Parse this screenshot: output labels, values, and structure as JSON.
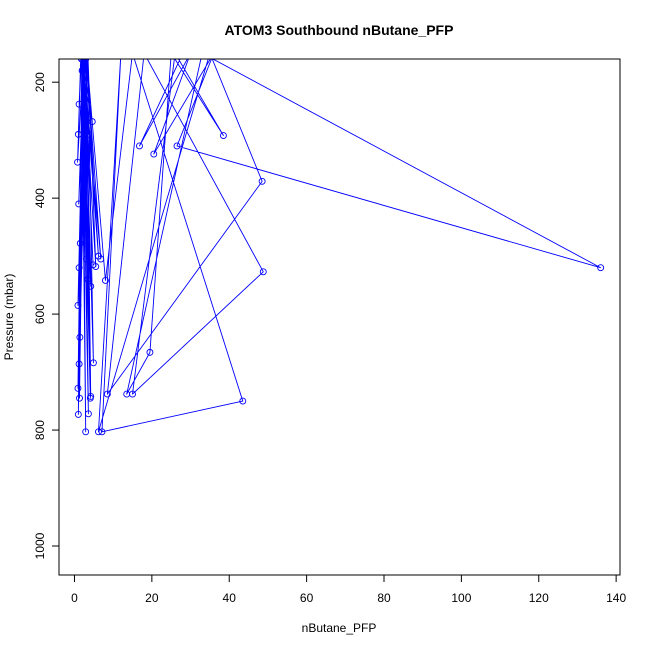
{
  "chart_data": {
    "type": "line",
    "title": "ATOM3 Southbound nButane_PFP",
    "xlabel": "nButane_PFP",
    "ylabel": "Pressure (mbar)",
    "xlim": [
      -4,
      141
    ],
    "ylim": [
      1050,
      160
    ],
    "y_reversed": true,
    "x_ticks": [
      "0",
      "20",
      "40",
      "60",
      "80",
      "100",
      "120",
      "140"
    ],
    "y_ticks": [
      "200",
      "400",
      "600",
      "800",
      "1000"
    ],
    "grid": false,
    "series_color": "#0000ff",
    "series": [
      {
        "points": [
          [
            1.2,
            238
          ],
          [
            2.1,
            100
          ],
          [
            1.0,
            290
          ],
          [
            1.8,
            120
          ],
          [
            0.8,
            338
          ],
          [
            2.4,
            150
          ],
          [
            1.1,
            410
          ],
          [
            2.8,
            140
          ],
          [
            1.5,
            478
          ],
          [
            3.2,
            90
          ],
          [
            1.2,
            520
          ],
          [
            2.3,
            170
          ],
          [
            0.9,
            585
          ],
          [
            2.9,
            160
          ],
          [
            1.4,
            640
          ],
          [
            3.4,
            120
          ],
          [
            1.2,
            686
          ],
          [
            2.0,
            180
          ],
          [
            0.9,
            728
          ],
          [
            2.6,
            130
          ],
          [
            1.3,
            745
          ],
          [
            1.9,
            150
          ],
          [
            1.0,
            773
          ],
          [
            2.7,
            110
          ],
          [
            3.6,
            290
          ],
          [
            1.5,
            130
          ],
          [
            4.6,
            268
          ],
          [
            2.0,
            180
          ],
          [
            3.1,
            505
          ],
          [
            1.7,
            150
          ],
          [
            4.2,
            552
          ],
          [
            2.5,
            160
          ],
          [
            4.8,
            515
          ],
          [
            2.2,
            140
          ],
          [
            3.4,
            540
          ],
          [
            1.9,
            160
          ],
          [
            4.1,
            745
          ],
          [
            2.4,
            120
          ],
          [
            3.6,
            772
          ],
          [
            1.8,
            160
          ],
          [
            2.9,
            803
          ],
          [
            2.1,
            140
          ],
          [
            6.2,
            500
          ],
          [
            3.0,
            150
          ],
          [
            6.8,
            505
          ],
          [
            2.4,
            170
          ],
          [
            5.5,
            518
          ],
          [
            3.4,
            140
          ],
          [
            4.9,
            684
          ],
          [
            2.6,
            160
          ],
          [
            4.2,
            742
          ],
          [
            3.1,
            150
          ],
          [
            8.0,
            542
          ],
          [
            15.0,
            150
          ],
          [
            43.5,
            750
          ],
          [
            7.1,
            803
          ],
          [
            12.0,
            150
          ],
          [
            6.2,
            803
          ],
          [
            35.0,
            150
          ],
          [
            48.5,
            371
          ],
          [
            8.5,
            738
          ],
          [
            18.0,
            150
          ],
          [
            48.8,
            527
          ],
          [
            15.0,
            738
          ],
          [
            26.0,
            150
          ],
          [
            38.5,
            292
          ],
          [
            25.0,
            150
          ],
          [
            19.5,
            666
          ],
          [
            13.5,
            738
          ],
          [
            33.0,
            150
          ],
          [
            136.0,
            520
          ],
          [
            26.5,
            310
          ],
          [
            36.0,
            150
          ],
          [
            20.5,
            324
          ],
          [
            30.0,
            150
          ],
          [
            16.8,
            310
          ],
          [
            28.0,
            150
          ]
        ]
      }
    ]
  }
}
